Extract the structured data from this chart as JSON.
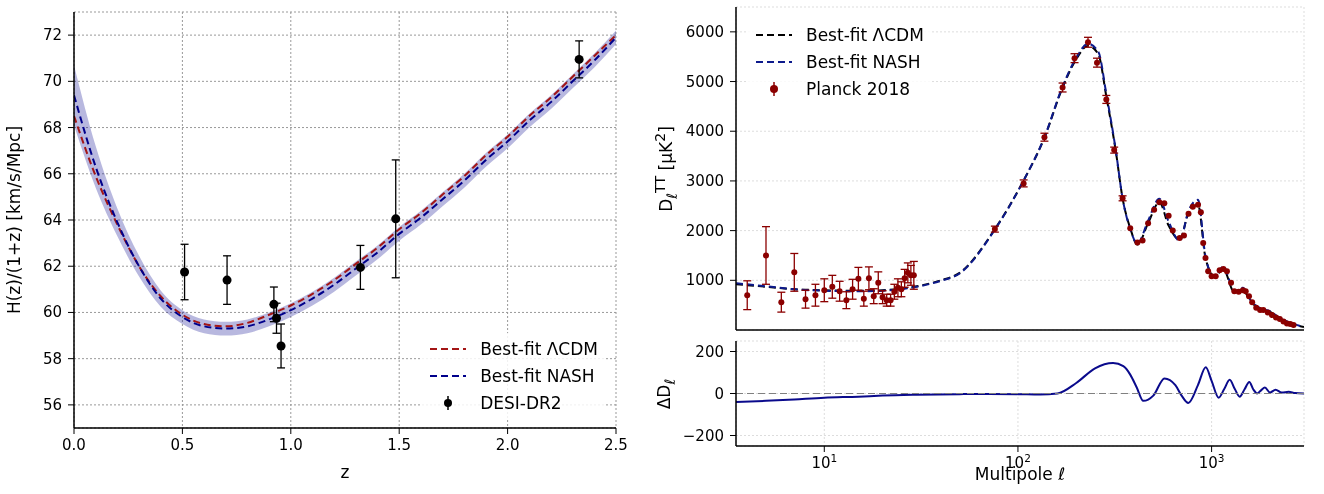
{
  "chart_data": [
    {
      "type": "line",
      "xlabel": "z",
      "ylabel": "H(z)/(1+z) [km/s/Mpc]",
      "xlim": [
        0,
        2.5
      ],
      "ylim": [
        55,
        73
      ],
      "xticks": [
        {
          "value": 0,
          "label": "0.0"
        },
        {
          "value": 0.5,
          "label": "0.5"
        },
        {
          "value": 1,
          "label": "1.0"
        },
        {
          "value": 1.5,
          "label": "1.5"
        },
        {
          "value": 2,
          "label": "2.0"
        },
        {
          "value": 2.5,
          "label": "2.5"
        }
      ],
      "yticks": [
        56,
        58,
        60,
        62,
        64,
        66,
        68,
        70,
        72
      ],
      "grid": true,
      "legend": "bottom right",
      "series": [
        {
          "name": "Best-fit ΛCDM",
          "color": "#a31515",
          "line_style": "dashed",
          "x": [
            0,
            0.1,
            0.2,
            0.3,
            0.4,
            0.5,
            0.6,
            0.7,
            0.8,
            0.9,
            1.0,
            1.1,
            1.2,
            1.3,
            1.4,
            1.5,
            1.6,
            1.7,
            1.8,
            1.9,
            2.0,
            2.1,
            2.2,
            2.3,
            2.4,
            2.5
          ],
          "values": [
            68.5,
            65.9,
            63.8,
            62.0,
            60.7,
            59.9,
            59.5,
            59.4,
            59.55,
            59.9,
            60.3,
            60.8,
            61.4,
            62.1,
            62.8,
            63.6,
            64.3,
            65.1,
            65.9,
            66.8,
            67.6,
            68.5,
            69.3,
            70.2,
            71.1,
            72.0
          ]
        },
        {
          "name": "Best-fit NASH",
          "color": "#00008b",
          "line_style": "dashed",
          "x": [
            0,
            0.1,
            0.2,
            0.3,
            0.4,
            0.5,
            0.6,
            0.7,
            0.8,
            0.9,
            1.0,
            1.1,
            1.2,
            1.3,
            1.4,
            1.5,
            1.6,
            1.7,
            1.8,
            1.9,
            2.0,
            2.1,
            2.2,
            2.3,
            2.4,
            2.5
          ],
          "values": [
            69.4,
            66.3,
            63.9,
            62.0,
            60.6,
            59.8,
            59.4,
            59.3,
            59.4,
            59.7,
            60.1,
            60.6,
            61.2,
            61.9,
            62.6,
            63.4,
            64.1,
            64.9,
            65.7,
            66.6,
            67.4,
            68.3,
            69.1,
            70.0,
            70.9,
            71.9
          ],
          "lower": [
            68.1,
            65.4,
            63.3,
            61.55,
            60.25,
            59.5,
            59.1,
            59.0,
            59.1,
            59.4,
            59.8,
            60.3,
            60.9,
            61.6,
            62.3,
            63.1,
            63.8,
            64.6,
            65.4,
            66.3,
            67.1,
            68.0,
            68.8,
            69.7,
            70.6,
            71.6
          ],
          "upper": [
            70.7,
            67.2,
            64.5,
            62.45,
            60.95,
            60.1,
            59.7,
            59.6,
            59.7,
            60.0,
            60.4,
            60.9,
            61.5,
            62.2,
            62.9,
            63.7,
            64.4,
            65.2,
            66.0,
            66.9,
            67.7,
            68.6,
            69.4,
            70.3,
            71.2,
            72.2
          ]
        },
        {
          "name": "DESI-DR2",
          "type": "scatter",
          "marker": "circle",
          "color": "#000000",
          "x": [
            0.51,
            0.706,
            0.922,
            0.934,
            0.955,
            1.321,
            1.484,
            2.33
          ],
          "values": [
            61.75,
            61.4,
            60.35,
            59.75,
            58.55,
            61.95,
            64.05,
            70.95
          ],
          "errors": [
            1.2,
            1.05,
            0.75,
            0.65,
            0.95,
            0.95,
            2.55,
            0.8
          ]
        }
      ]
    },
    {
      "type": "line",
      "ylabel": "D$_{ℓ}$$^{TT}$  [μK$^{2}$]",
      "log": "x",
      "xlim": [
        3.5,
        3000
      ],
      "ylim": [
        0,
        6500
      ],
      "xticks": [
        {
          "value": 10,
          "label": null
        },
        {
          "value": 100,
          "label": null
        },
        {
          "value": 1000,
          "label": null
        }
      ],
      "yticks": [
        1000,
        2000,
        3000,
        4000,
        5000,
        6000
      ],
      "tick_labels": "y",
      "grid": true,
      "legend": "top left",
      "series": [
        {
          "name": "Best-fit ΛCDM",
          "color": "#000000",
          "line_style": "dashed",
          "x": [
            3.5,
            5,
            7,
            10,
            15,
            20,
            30,
            40,
            50,
            76,
            105,
            137,
            170,
            200,
            230,
            260,
            286,
            320,
            347,
            380,
            414,
            470,
            537,
            600,
            684,
            760,
            851,
            930,
            1035,
            1150,
            1310,
            1450,
            1600,
            1800,
            2000,
            2200,
            2500,
            3000
          ],
          "values": [
            920,
            870,
            820,
            800,
            790,
            800,
            880,
            1000,
            1150,
            2030,
            2950,
            3870,
            4880,
            5450,
            5720,
            5550,
            4700,
            3600,
            2650,
            2050,
            1720,
            2150,
            2570,
            2100,
            1820,
            2350,
            2520,
            1450,
            1080,
            1220,
            760,
            800,
            560,
            420,
            370,
            260,
            150,
            60
          ]
        },
        {
          "name": "Best-fit NASH",
          "color": "#0d1a8c",
          "line_style": "dashed",
          "x": [
            3.5,
            5,
            7,
            10,
            15,
            20,
            30,
            40,
            50,
            76,
            105,
            137,
            170,
            200,
            230,
            260,
            286,
            320,
            347,
            380,
            414,
            470,
            537,
            600,
            684,
            760,
            851,
            930,
            1035,
            1150,
            1310,
            1450,
            1600,
            1800,
            2000,
            2200,
            2500,
            3000
          ],
          "values": [
            940,
            880,
            820,
            790,
            780,
            790,
            870,
            990,
            1140,
            2020,
            2950,
            3880,
            4900,
            5480,
            5760,
            5600,
            4750,
            3620,
            2650,
            2030,
            1740,
            2200,
            2640,
            2180,
            1790,
            2400,
            2620,
            1480,
            1060,
            1280,
            780,
            850,
            580,
            430,
            380,
            270,
            160,
            60
          ]
        },
        {
          "name": "Planck 2018",
          "type": "scatter",
          "marker": "circle",
          "color": "#8b0000",
          "x": [
            4,
            5,
            6,
            7,
            8,
            9,
            10,
            11,
            12,
            13,
            14,
            15,
            16,
            17,
            18,
            19,
            20,
            21,
            22,
            23,
            24,
            25,
            26,
            27,
            28,
            29,
            76,
            107,
            137,
            170,
            196,
            230,
            256,
            286,
            314,
            347,
            380,
            414,
            440,
            470,
            505,
            537,
            570,
            600,
            630,
            684,
            720,
            760,
            800,
            851,
            880,
            905,
            930,
            960,
            1000,
            1050,
            1100,
            1150,
            1200,
            1260,
            1310,
            1380,
            1450,
            1500,
            1560,
            1620,
            1700,
            1780,
            1850,
            1950,
            2050,
            2150,
            2250,
            2350,
            2450,
            2550,
            2650
          ],
          "values": [
            700,
            1500,
            560,
            1160,
            620,
            700,
            800,
            870,
            780,
            600,
            820,
            1030,
            630,
            1040,
            680,
            950,
            660,
            600,
            600,
            770,
            850,
            820,
            1040,
            1150,
            1100,
            1100,
            2030,
            2950,
            3880,
            4880,
            5470,
            5790,
            5380,
            4640,
            3620,
            2650,
            2050,
            1760,
            1800,
            2150,
            2420,
            2570,
            2550,
            2300,
            2000,
            1850,
            1900,
            2340,
            2480,
            2520,
            2370,
            1750,
            1450,
            1180,
            1080,
            1080,
            1200,
            1230,
            1180,
            950,
            780,
            770,
            800,
            780,
            680,
            560,
            450,
            400,
            400,
            350,
            300,
            250,
            220,
            170,
            130,
            120,
            100
          ],
          "errors": [
            290,
            580,
            200,
            380,
            180,
            220,
            230,
            230,
            200,
            170,
            200,
            230,
            150,
            230,
            150,
            220,
            130,
            120,
            120,
            150,
            180,
            150,
            180,
            200,
            200,
            280,
            60,
            70,
            80,
            90,
            90,
            100,
            90,
            80,
            60,
            50,
            null,
            null,
            null,
            null,
            null,
            null,
            null,
            null,
            null,
            null,
            null,
            null,
            null,
            null,
            null,
            null,
            null,
            null,
            null,
            null,
            null,
            null,
            null,
            null,
            null,
            null,
            null,
            null,
            null,
            null,
            null,
            null,
            null,
            null,
            null,
            null,
            null,
            null,
            null,
            null,
            null
          ]
        }
      ]
    },
    {
      "type": "line",
      "xlabel": "Multipole ℓ",
      "ylabel": "ΔD$_{ℓ}$",
      "log": "x",
      "xlim": [
        3.5,
        3000
      ],
      "ylim": [
        -250,
        250
      ],
      "xticks": [
        {
          "value": 10,
          "label": "10$^{1}$"
        },
        {
          "value": 100,
          "label": "10$^{2}$"
        },
        {
          "value": 1000,
          "label": "10$^{3}$"
        }
      ],
      "yticks": [
        {
          "value": -200,
          "label": "−200"
        },
        0,
        200
      ],
      "grid": true,
      "ref_lines": [
        {
          "axis": "y",
          "value": 0,
          "color": "#808080",
          "line_style": "dashed"
        }
      ],
      "series": [
        {
          "color": "#0a0a8c",
          "x": [
            3.5,
            5,
            7,
            10,
            15,
            20,
            30,
            50,
            70,
            100,
            130,
            160,
            200,
            250,
            310,
            350,
            380,
            410,
            444,
            500,
            571,
            650,
            700,
            758,
            850,
            933,
            1000,
            1087,
            1160,
            1240,
            1320,
            1396,
            1480,
            1566,
            1640,
            1720,
            1800,
            1885,
            2000,
            2140,
            2300,
            2500,
            2700,
            3000
          ],
          "values": [
            -40,
            -35,
            -28,
            -20,
            -15,
            -10,
            -6,
            -3,
            -2,
            -3,
            -5,
            0,
            50,
            120,
            145,
            130,
            90,
            30,
            -35,
            -10,
            72,
            40,
            -10,
            -45,
            40,
            125,
            60,
            -20,
            20,
            65,
            20,
            -15,
            20,
            55,
            20,
            0,
            15,
            28,
            5,
            18,
            5,
            8,
            2,
            0
          ]
        }
      ]
    }
  ]
}
